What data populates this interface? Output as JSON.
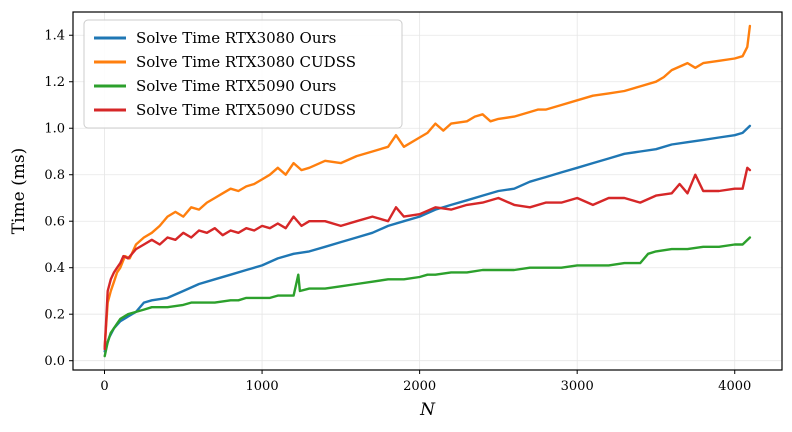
{
  "chart_data": {
    "type": "line",
    "title": "",
    "xlabel": "N",
    "ylabel": "Time (ms)",
    "xlim": [
      -200,
      4300
    ],
    "ylim": [
      -0.04,
      1.5
    ],
    "xticks": [
      0,
      1000,
      2000,
      3000,
      4000
    ],
    "xtick_labels": [
      "0",
      "1000",
      "2000",
      "3000",
      "4000"
    ],
    "yticks": [
      0.0,
      0.2,
      0.4,
      0.6,
      0.8,
      1.0,
      1.2,
      1.4
    ],
    "ytick_labels": [
      "0.0",
      "0.2",
      "0.4",
      "0.6",
      "0.8",
      "1.0",
      "1.2",
      "1.4"
    ],
    "grid": true,
    "legend_position": "top-left",
    "series": [
      {
        "name": "Solve Time RTX3080 Ours",
        "color": "#1f77b4",
        "x": [
          1,
          30,
          60,
          100,
          150,
          200,
          250,
          300,
          400,
          500,
          600,
          700,
          800,
          900,
          1000,
          1100,
          1200,
          1300,
          1400,
          1500,
          1600,
          1700,
          1800,
          1900,
          2000,
          2100,
          2200,
          2300,
          2400,
          2500,
          2600,
          2700,
          2750,
          2800,
          2900,
          3000,
          3100,
          3200,
          3300,
          3400,
          3500,
          3600,
          3700,
          3800,
          3900,
          4000,
          4050,
          4096
        ],
        "y": [
          0.04,
          0.1,
          0.14,
          0.17,
          0.19,
          0.21,
          0.25,
          0.26,
          0.27,
          0.3,
          0.33,
          0.35,
          0.37,
          0.39,
          0.41,
          0.44,
          0.46,
          0.47,
          0.49,
          0.51,
          0.53,
          0.55,
          0.58,
          0.6,
          0.62,
          0.65,
          0.67,
          0.69,
          0.71,
          0.73,
          0.74,
          0.77,
          0.78,
          0.79,
          0.81,
          0.83,
          0.85,
          0.87,
          0.89,
          0.9,
          0.91,
          0.93,
          0.94,
          0.95,
          0.96,
          0.97,
          0.98,
          1.01
        ]
      },
      {
        "name": "Solve Time RTX3080 CUDSS",
        "color": "#ff7f0e",
        "x": [
          1,
          20,
          40,
          60,
          80,
          100,
          130,
          160,
          200,
          250,
          300,
          350,
          400,
          450,
          500,
          550,
          600,
          650,
          700,
          750,
          800,
          850,
          900,
          950,
          1000,
          1050,
          1100,
          1150,
          1200,
          1250,
          1300,
          1400,
          1500,
          1600,
          1700,
          1800,
          1850,
          1900,
          2000,
          2050,
          2100,
          2150,
          2200,
          2300,
          2350,
          2400,
          2450,
          2500,
          2600,
          2700,
          2750,
          2800,
          2900,
          3000,
          3100,
          3200,
          3300,
          3400,
          3500,
          3550,
          3600,
          3700,
          3750,
          3800,
          3900,
          4000,
          4050,
          4080,
          4096
        ],
        "y": [
          0.06,
          0.25,
          0.3,
          0.34,
          0.38,
          0.4,
          0.45,
          0.44,
          0.5,
          0.53,
          0.55,
          0.58,
          0.62,
          0.64,
          0.62,
          0.66,
          0.65,
          0.68,
          0.7,
          0.72,
          0.74,
          0.73,
          0.75,
          0.76,
          0.78,
          0.8,
          0.83,
          0.8,
          0.85,
          0.82,
          0.83,
          0.86,
          0.85,
          0.88,
          0.9,
          0.92,
          0.97,
          0.92,
          0.96,
          0.98,
          1.02,
          0.99,
          1.02,
          1.03,
          1.05,
          1.06,
          1.03,
          1.04,
          1.05,
          1.07,
          1.08,
          1.08,
          1.1,
          1.12,
          1.14,
          1.15,
          1.16,
          1.18,
          1.2,
          1.22,
          1.25,
          1.28,
          1.26,
          1.28,
          1.29,
          1.3,
          1.31,
          1.35,
          1.44
        ]
      },
      {
        "name": "Solve Time RTX5090 Ours",
        "color": "#2ca02c",
        "x": [
          1,
          20,
          40,
          60,
          80,
          100,
          150,
          200,
          250,
          300,
          400,
          500,
          550,
          600,
          700,
          800,
          850,
          900,
          1000,
          1050,
          1100,
          1200,
          1230,
          1240,
          1300,
          1400,
          1500,
          1600,
          1700,
          1800,
          1900,
          2000,
          2050,
          2100,
          2200,
          2300,
          2400,
          2500,
          2600,
          2700,
          2800,
          2900,
          3000,
          3100,
          3200,
          3300,
          3400,
          3450,
          3500,
          3600,
          3700,
          3800,
          3900,
          4000,
          4050,
          4096
        ],
        "y": [
          0.02,
          0.08,
          0.12,
          0.14,
          0.16,
          0.18,
          0.2,
          0.21,
          0.22,
          0.23,
          0.23,
          0.24,
          0.25,
          0.25,
          0.25,
          0.26,
          0.26,
          0.27,
          0.27,
          0.27,
          0.28,
          0.28,
          0.37,
          0.3,
          0.31,
          0.31,
          0.32,
          0.33,
          0.34,
          0.35,
          0.35,
          0.36,
          0.37,
          0.37,
          0.38,
          0.38,
          0.39,
          0.39,
          0.39,
          0.4,
          0.4,
          0.4,
          0.41,
          0.41,
          0.41,
          0.42,
          0.42,
          0.46,
          0.47,
          0.48,
          0.48,
          0.49,
          0.49,
          0.5,
          0.5,
          0.53
        ]
      },
      {
        "name": "Solve Time RTX5090 CUDSS",
        "color": "#d62728",
        "x": [
          1,
          20,
          40,
          60,
          80,
          100,
          120,
          150,
          200,
          250,
          300,
          350,
          400,
          450,
          500,
          550,
          600,
          650,
          700,
          750,
          800,
          850,
          900,
          950,
          1000,
          1050,
          1100,
          1150,
          1200,
          1250,
          1300,
          1400,
          1500,
          1600,
          1700,
          1800,
          1850,
          1900,
          2000,
          2100,
          2200,
          2300,
          2400,
          2500,
          2600,
          2700,
          2800,
          2900,
          3000,
          3100,
          3200,
          3300,
          3400,
          3500,
          3600,
          3650,
          3700,
          3750,
          3800,
          3900,
          4000,
          4050,
          4080,
          4096
        ],
        "y": [
          0.05,
          0.3,
          0.35,
          0.38,
          0.4,
          0.42,
          0.45,
          0.44,
          0.48,
          0.5,
          0.52,
          0.5,
          0.53,
          0.52,
          0.55,
          0.53,
          0.56,
          0.55,
          0.57,
          0.54,
          0.56,
          0.55,
          0.57,
          0.56,
          0.58,
          0.57,
          0.59,
          0.57,
          0.62,
          0.58,
          0.6,
          0.6,
          0.58,
          0.6,
          0.62,
          0.6,
          0.66,
          0.62,
          0.63,
          0.66,
          0.65,
          0.67,
          0.68,
          0.7,
          0.67,
          0.66,
          0.68,
          0.68,
          0.7,
          0.67,
          0.7,
          0.7,
          0.68,
          0.71,
          0.72,
          0.76,
          0.72,
          0.8,
          0.73,
          0.73,
          0.74,
          0.74,
          0.83,
          0.82
        ]
      }
    ]
  }
}
